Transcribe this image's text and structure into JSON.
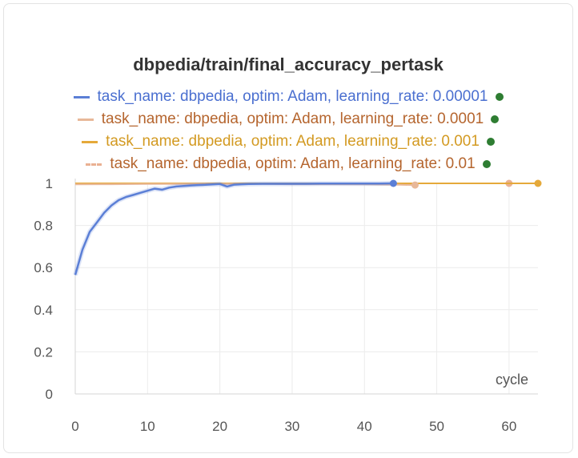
{
  "chart_data": {
    "type": "line",
    "title": "dbpedia/train/final_accuracy_pertask",
    "xlabel": "cycle",
    "ylabel": "",
    "xlim": [
      0,
      64
    ],
    "ylim": [
      0,
      1
    ],
    "xticks": [
      0,
      10,
      20,
      30,
      40,
      50,
      60
    ],
    "yticks": [
      0,
      0.2,
      0.4,
      0.6,
      0.8,
      1
    ],
    "ytick_labels": [
      "0",
      "0.2",
      "0.4",
      "0.6",
      "0.8",
      "1"
    ],
    "grid": true,
    "legend_position": "top",
    "series": [
      {
        "name": "task_name: dbpedia, optim: Adam, learning_rate: 0.00001",
        "color": "#5b7fd6",
        "dash": "solid",
        "x": [
          0,
          1,
          2,
          3,
          4,
          5,
          6,
          7,
          8,
          9,
          10,
          11,
          12,
          13,
          14,
          15,
          16,
          17,
          18,
          19,
          20,
          21,
          22,
          23,
          24,
          26,
          28,
          30,
          32,
          34,
          36,
          38,
          40,
          42,
          44
        ],
        "y": [
          0.565,
          0.685,
          0.77,
          0.815,
          0.86,
          0.895,
          0.92,
          0.935,
          0.945,
          0.955,
          0.965,
          0.975,
          0.97,
          0.98,
          0.985,
          0.988,
          0.99,
          0.992,
          0.993,
          0.995,
          0.997,
          0.985,
          0.994,
          0.996,
          0.997,
          0.998,
          0.998,
          0.998,
          0.998,
          0.999,
          0.999,
          0.999,
          0.999,
          0.999,
          1.0
        ],
        "end_marker": true
      },
      {
        "name": "task_name: dbpedia, optim: Adam, learning_rate: 0.0001",
        "color": "#e8b899",
        "dash": "solid",
        "x": [
          0,
          5,
          10,
          15,
          20,
          25,
          30,
          35,
          40,
          45,
          47
        ],
        "y": [
          0.995,
          0.996,
          0.997,
          0.997,
          0.997,
          0.997,
          0.996,
          0.996,
          0.995,
          0.993,
          0.992
        ],
        "end_marker": true
      },
      {
        "name": "task_name: dbpedia, optim: Adam, learning_rate: 0.001",
        "color": "#e5a93a",
        "dash": "solid",
        "x": [
          0,
          10,
          20,
          30,
          40,
          50,
          60,
          64
        ],
        "y": [
          1.0,
          1.0,
          1.0,
          1.0,
          1.0,
          1.0,
          1.0,
          1.0
        ],
        "end_marker": true
      },
      {
        "name": "task_name: dbpedia, optim: Adam, learning_rate: 0.01",
        "color": "#eab192",
        "dash": "dashed",
        "x": [
          0,
          10,
          20,
          30,
          40,
          50,
          60
        ],
        "y": [
          1.0,
          1.0,
          1.0,
          1.0,
          1.0,
          1.0,
          1.0
        ],
        "end_marker": true
      }
    ]
  },
  "legend": {
    "label_colors": [
      "#4a6fd0",
      "#b5652e",
      "#d39a22",
      "#b5652e"
    ],
    "status_dot_color": "#2e7d32"
  }
}
